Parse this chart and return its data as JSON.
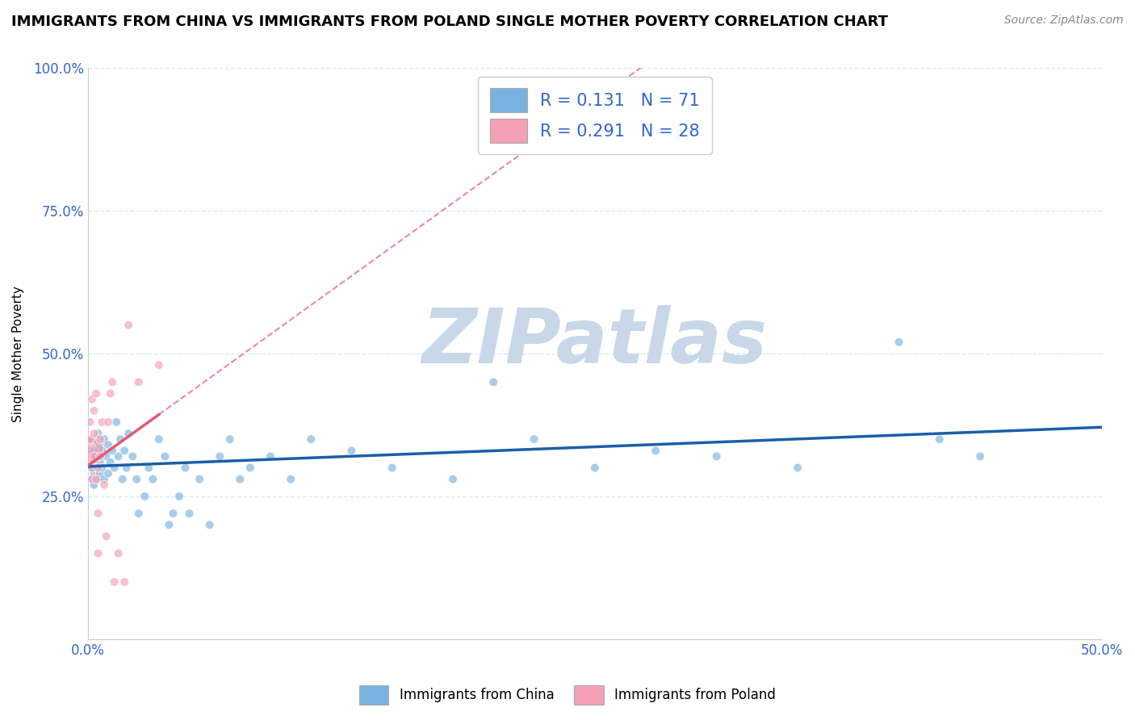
{
  "title": "IMMIGRANTS FROM CHINA VS IMMIGRANTS FROM POLAND SINGLE MOTHER POVERTY CORRELATION CHART",
  "source": "Source: ZipAtlas.com",
  "ylabel": "Single Mother Poverty",
  "xlabel": "",
  "xlim": [
    0.0,
    0.5
  ],
  "ylim": [
    0.0,
    1.0
  ],
  "xticks": [
    0.0,
    0.1,
    0.2,
    0.3,
    0.4,
    0.5
  ],
  "yticks": [
    0.0,
    0.25,
    0.5,
    0.75,
    1.0
  ],
  "xtick_labels": [
    "0.0%",
    "",
    "",
    "",
    "",
    "50.0%"
  ],
  "ytick_labels": [
    "",
    "25.0%",
    "50.0%",
    "75.0%",
    "100.0%"
  ],
  "china_color": "#7ab3e0",
  "poland_color": "#f4a0b5",
  "china_line_color": "#1a5fa8",
  "poland_line_color": "#e05a7a",
  "china_R": 0.131,
  "china_N": 71,
  "poland_R": 0.291,
  "poland_N": 28,
  "watermark": "ZIPatlas",
  "watermark_color": "#c8d8e8",
  "legend_label_color": "#3366cc",
  "china_scatter": [
    [
      0.001,
      0.33
    ],
    [
      0.001,
      0.35
    ],
    [
      0.001,
      0.3
    ],
    [
      0.002,
      0.32
    ],
    [
      0.002,
      0.3
    ],
    [
      0.002,
      0.28
    ],
    [
      0.002,
      0.35
    ],
    [
      0.003,
      0.31
    ],
    [
      0.003,
      0.33
    ],
    [
      0.003,
      0.29
    ],
    [
      0.003,
      0.27
    ],
    [
      0.004,
      0.32
    ],
    [
      0.004,
      0.3
    ],
    [
      0.004,
      0.35
    ],
    [
      0.005,
      0.33
    ],
    [
      0.005,
      0.28
    ],
    [
      0.005,
      0.36
    ],
    [
      0.006,
      0.31
    ],
    [
      0.006,
      0.29
    ],
    [
      0.006,
      0.34
    ],
    [
      0.007,
      0.33
    ],
    [
      0.007,
      0.3
    ],
    [
      0.008,
      0.35
    ],
    [
      0.008,
      0.28
    ],
    [
      0.009,
      0.32
    ],
    [
      0.01,
      0.34
    ],
    [
      0.01,
      0.29
    ],
    [
      0.011,
      0.31
    ],
    [
      0.012,
      0.33
    ],
    [
      0.013,
      0.3
    ],
    [
      0.014,
      0.38
    ],
    [
      0.015,
      0.32
    ],
    [
      0.016,
      0.35
    ],
    [
      0.017,
      0.28
    ],
    [
      0.018,
      0.33
    ],
    [
      0.019,
      0.3
    ],
    [
      0.02,
      0.36
    ],
    [
      0.022,
      0.32
    ],
    [
      0.024,
      0.28
    ],
    [
      0.025,
      0.22
    ],
    [
      0.028,
      0.25
    ],
    [
      0.03,
      0.3
    ],
    [
      0.032,
      0.28
    ],
    [
      0.035,
      0.35
    ],
    [
      0.038,
      0.32
    ],
    [
      0.04,
      0.2
    ],
    [
      0.042,
      0.22
    ],
    [
      0.045,
      0.25
    ],
    [
      0.048,
      0.3
    ],
    [
      0.05,
      0.22
    ],
    [
      0.055,
      0.28
    ],
    [
      0.06,
      0.2
    ],
    [
      0.065,
      0.32
    ],
    [
      0.07,
      0.35
    ],
    [
      0.075,
      0.28
    ],
    [
      0.08,
      0.3
    ],
    [
      0.09,
      0.32
    ],
    [
      0.1,
      0.28
    ],
    [
      0.11,
      0.35
    ],
    [
      0.13,
      0.33
    ],
    [
      0.15,
      0.3
    ],
    [
      0.18,
      0.28
    ],
    [
      0.2,
      0.45
    ],
    [
      0.22,
      0.35
    ],
    [
      0.25,
      0.3
    ],
    [
      0.28,
      0.33
    ],
    [
      0.31,
      0.32
    ],
    [
      0.35,
      0.3
    ],
    [
      0.4,
      0.52
    ],
    [
      0.42,
      0.35
    ],
    [
      0.44,
      0.32
    ]
  ],
  "china_sizes": [
    60,
    60,
    60,
    60,
    60,
    60,
    60,
    60,
    60,
    60,
    60,
    60,
    60,
    60,
    60,
    60,
    60,
    60,
    60,
    60,
    60,
    60,
    60,
    60,
    60,
    60,
    60,
    60,
    60,
    60,
    60,
    60,
    60,
    60,
    60,
    60,
    60,
    60,
    60,
    60,
    60,
    60,
    60,
    60,
    60,
    60,
    60,
    60,
    60,
    60,
    60,
    60,
    60,
    60,
    60,
    60,
    60,
    60,
    60,
    60,
    60,
    60,
    60,
    60,
    60,
    60,
    60,
    60,
    60,
    60,
    60
  ],
  "poland_scatter": [
    [
      0.001,
      0.33
    ],
    [
      0.001,
      0.35
    ],
    [
      0.001,
      0.38
    ],
    [
      0.002,
      0.3
    ],
    [
      0.002,
      0.42
    ],
    [
      0.002,
      0.28
    ],
    [
      0.003,
      0.36
    ],
    [
      0.003,
      0.32
    ],
    [
      0.003,
      0.4
    ],
    [
      0.004,
      0.28
    ],
    [
      0.004,
      0.43
    ],
    [
      0.005,
      0.3
    ],
    [
      0.005,
      0.22
    ],
    [
      0.005,
      0.15
    ],
    [
      0.006,
      0.35
    ],
    [
      0.006,
      0.32
    ],
    [
      0.007,
      0.38
    ],
    [
      0.008,
      0.27
    ],
    [
      0.009,
      0.18
    ],
    [
      0.01,
      0.38
    ],
    [
      0.011,
      0.43
    ],
    [
      0.012,
      0.45
    ],
    [
      0.013,
      0.1
    ],
    [
      0.015,
      0.15
    ],
    [
      0.018,
      0.1
    ],
    [
      0.02,
      0.55
    ],
    [
      0.025,
      0.45
    ],
    [
      0.035,
      0.48
    ]
  ],
  "poland_sizes": [
    600,
    60,
    60,
    60,
    60,
    60,
    60,
    60,
    60,
    60,
    60,
    60,
    60,
    60,
    60,
    60,
    60,
    60,
    60,
    60,
    60,
    60,
    60,
    60,
    60,
    60,
    60,
    60
  ],
  "background_color": "#ffffff",
  "grid_color": "#d8e8f5",
  "title_fontsize": 13,
  "axis_label_fontsize": 11,
  "tick_fontsize": 12
}
